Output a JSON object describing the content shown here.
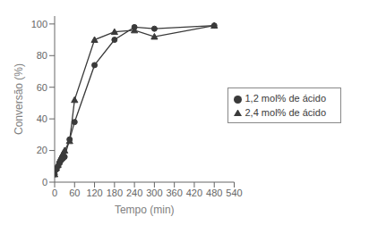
{
  "chart_data": {
    "type": "line",
    "xlabel": "Tempo (min)",
    "ylabel": "Conversão (%)",
    "x": [
      0,
      5,
      10,
      15,
      20,
      25,
      30,
      45,
      60,
      120,
      180,
      240,
      300,
      480
    ],
    "series": [
      {
        "name": "1,2 mol% de ácido",
        "color": "#3a3a3a",
        "marker": "circle",
        "values": [
          5,
          8,
          10,
          12,
          14,
          15,
          16,
          27,
          38,
          74,
          90,
          98,
          97,
          99
        ]
      },
      {
        "name": "2,4 mol% de ácido",
        "color": "#3a3a3a",
        "marker": "triangle",
        "values": [
          5,
          9,
          11,
          14,
          16,
          18,
          20,
          26,
          52,
          90,
          95,
          96,
          92,
          99
        ]
      }
    ],
    "xlim": [
      0,
      540
    ],
    "ylim": [
      0,
      105
    ],
    "xticks": [
      0,
      60,
      120,
      180,
      240,
      300,
      360,
      420,
      480,
      540
    ],
    "yticks": [
      0,
      20,
      40,
      60,
      80,
      100
    ],
    "grid": false,
    "legend": "right"
  }
}
